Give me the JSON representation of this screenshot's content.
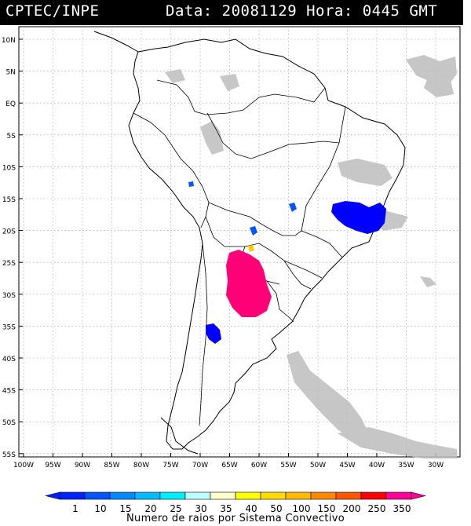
{
  "header": {
    "source": "CPTEC/INPE",
    "datetime": "Data: 20081129 Hora: 0445 GMT"
  },
  "map": {
    "lat_labels": [
      "10N",
      "5N",
      "EQ",
      "5S",
      "10S",
      "15S",
      "20S",
      "25S",
      "30S",
      "35S",
      "40S",
      "45S",
      "50S",
      "55S"
    ],
    "lon_labels": [
      "100W",
      "95W",
      "90W",
      "85W",
      "80W",
      "75W",
      "70W",
      "65W",
      "60W",
      "55W",
      "50W",
      "45W",
      "40W",
      "35W",
      "30W"
    ],
    "colors": {
      "land_outline": "#000000",
      "cloud": "#bdbdbd",
      "strike_min": "#0000ff",
      "strike_mid": "#0055ff",
      "strike_max": "#ff0077",
      "strike_yellow": "#ffcc00",
      "grid": "#999999"
    }
  },
  "colorbar": {
    "title": "Numero de raios por Sistema Convectivo",
    "ticks": [
      "1",
      "10",
      "15",
      "20",
      "25",
      "30",
      "35",
      "40",
      "50",
      "100",
      "150",
      "200",
      "250",
      "350"
    ],
    "colors": [
      "#0022ff",
      "#0055ff",
      "#0088ff",
      "#00bbff",
      "#00eeff",
      "#bbffff",
      "#ffffcc",
      "#ffff00",
      "#ffdd00",
      "#ffbb00",
      "#ff8800",
      "#ff5500",
      "#ff0000",
      "#ff0099"
    ]
  }
}
